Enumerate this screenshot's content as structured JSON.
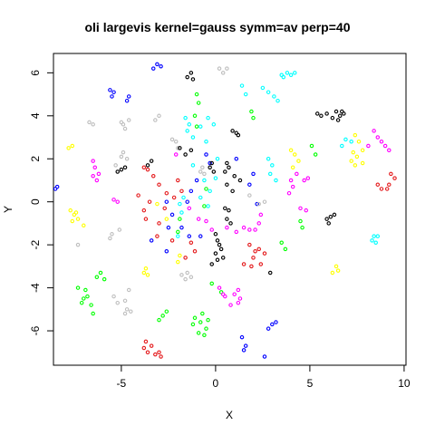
{
  "chart_data": {
    "type": "scatter",
    "title": "oli largevis kernel=gauss symm=av perp=40",
    "xlabel": "X",
    "ylabel": "Y",
    "xlim": [
      -8.6,
      10.1
    ],
    "ylim": [
      -7.6,
      6.9
    ],
    "xticks": [
      -5,
      0,
      5,
      10
    ],
    "yticks": [
      -6,
      -4,
      -2,
      0,
      2,
      4,
      6
    ],
    "marker": "open-circle",
    "series": [
      {
        "color": "#e41a1c",
        "points": [
          [
            -3.8,
            -6.8
          ],
          [
            -3.6,
            -7.0
          ],
          [
            -3.2,
            -7.1
          ],
          [
            -3.4,
            -6.7
          ],
          [
            -2.9,
            -7.2
          ],
          [
            -3.7,
            -6.5
          ],
          [
            -3.0,
            -7.0
          ],
          [
            9.3,
            1.3
          ],
          [
            9.5,
            1.1
          ],
          [
            9.2,
            0.8
          ],
          [
            8.6,
            0.8
          ],
          [
            8.8,
            0.6
          ],
          [
            9.1,
            0.6
          ],
          [
            -2.6,
            0.4
          ],
          [
            -3.0,
            0.8
          ],
          [
            -2.2,
            0.2
          ],
          [
            -1.8,
            0.5
          ],
          [
            -2.0,
            1.0
          ],
          [
            -3.5,
            0.0
          ],
          [
            -3.8,
            -0.4
          ],
          [
            -2.7,
            -0.3
          ],
          [
            -3.0,
            -1.0
          ],
          [
            -3.3,
            1.2
          ],
          [
            -4.1,
            0.3
          ],
          [
            -3.6,
            1.5
          ],
          [
            -3.8,
            1.6
          ],
          [
            1.8,
            -2.0
          ],
          [
            2.3,
            -2.2
          ],
          [
            2.6,
            -2.4
          ],
          [
            2.0,
            -2.6
          ],
          [
            2.4,
            -2.9
          ],
          [
            1.5,
            -2.9
          ],
          [
            1.9,
            -3.0
          ],
          [
            2.1,
            -2.3
          ],
          [
            -1.3,
            -1.9
          ],
          [
            -1.1,
            -2.3
          ],
          [
            -1.6,
            -2.6
          ],
          [
            -3.7,
            -0.8
          ],
          [
            -2.3,
            -1.8
          ],
          [
            -3.1,
            -1.6
          ]
        ]
      },
      {
        "color": "#0000ff",
        "points": [
          [
            -3.1,
            6.4
          ],
          [
            -2.9,
            6.3
          ],
          [
            -3.3,
            6.2
          ],
          [
            -5.6,
            5.2
          ],
          [
            -5.4,
            5.1
          ],
          [
            -5.5,
            4.9
          ],
          [
            -4.6,
            4.9
          ],
          [
            -4.7,
            4.7
          ],
          [
            -8.4,
            0.7
          ],
          [
            -8.5,
            0.6
          ],
          [
            -2.6,
            0.0
          ],
          [
            -2.3,
            -0.6
          ],
          [
            -2.5,
            -1.2
          ],
          [
            -0.8,
            -1.6
          ],
          [
            -1.0,
            1.0
          ],
          [
            -1.3,
            0.5
          ],
          [
            -0.5,
            2.2
          ],
          [
            -0.3,
            1.8
          ],
          [
            1.1,
            2.0
          ],
          [
            1.8,
            0.8
          ],
          [
            2.0,
            1.3
          ],
          [
            2.2,
            -0.1
          ],
          [
            3.0,
            -5.7
          ],
          [
            3.2,
            -5.6
          ],
          [
            2.8,
            -5.9
          ],
          [
            1.4,
            -6.3
          ],
          [
            1.6,
            -6.7
          ],
          [
            1.5,
            -6.9
          ],
          [
            2.6,
            -7.2
          ],
          [
            -1.8,
            -1.2
          ],
          [
            -1.4,
            -1.6
          ],
          [
            -2.6,
            -2.3
          ],
          [
            -3.4,
            -1.8
          ],
          [
            -1.5,
            0.0
          ]
        ]
      },
      {
        "color": "#00ff00",
        "points": [
          [
            -1.0,
            5.0
          ],
          [
            -0.9,
            4.6
          ],
          [
            -1.1,
            4.0
          ],
          [
            -1.0,
            3.5
          ],
          [
            0.3,
            -4.2
          ],
          [
            -0.2,
            -3.8
          ],
          [
            -6.9,
            -4.1
          ],
          [
            -7.0,
            -4.5
          ],
          [
            -6.6,
            -4.8
          ],
          [
            -7.3,
            -4.0
          ],
          [
            -6.8,
            -4.4
          ],
          [
            -6.5,
            -5.2
          ],
          [
            -7.1,
            -4.7
          ],
          [
            -6.1,
            -3.3
          ],
          [
            -5.9,
            -3.6
          ],
          [
            -6.3,
            -3.5
          ],
          [
            -2.8,
            -5.3
          ],
          [
            -2.6,
            -5.1
          ],
          [
            -3.0,
            -5.5
          ],
          [
            -1.2,
            -5.7
          ],
          [
            -0.8,
            -5.6
          ],
          [
            -0.5,
            -5.9
          ],
          [
            -0.9,
            -6.1
          ],
          [
            -1.1,
            -5.4
          ],
          [
            -0.6,
            -6.2
          ],
          [
            -0.7,
            -5.2
          ],
          [
            -0.4,
            -5.5
          ],
          [
            5.1,
            2.6
          ],
          [
            5.3,
            2.2
          ],
          [
            4.5,
            -0.9
          ],
          [
            4.6,
            -1.2
          ],
          [
            3.5,
            -1.9
          ],
          [
            3.7,
            -2.2
          ],
          [
            -1.9,
            -0.8
          ],
          [
            -2.0,
            -1.4
          ],
          [
            -0.6,
            -0.2
          ],
          [
            -0.5,
            0.6
          ],
          [
            2.0,
            3.9
          ],
          [
            1.9,
            4.2
          ]
        ]
      },
      {
        "color": "#00ffff",
        "points": [
          [
            3.5,
            5.9
          ],
          [
            3.8,
            6.0
          ],
          [
            4.0,
            5.9
          ],
          [
            4.2,
            6.0
          ],
          [
            3.6,
            5.8
          ],
          [
            -1.6,
            3.9
          ],
          [
            -1.4,
            3.6
          ],
          [
            -1.5,
            3.3
          ],
          [
            -1.2,
            3.0
          ],
          [
            -0.8,
            3.5
          ],
          [
            -0.4,
            3.9
          ],
          [
            -0.1,
            3.6
          ],
          [
            2.5,
            5.3
          ],
          [
            2.8,
            5.1
          ],
          [
            3.1,
            4.9
          ],
          [
            3.3,
            4.7
          ],
          [
            1.4,
            5.4
          ],
          [
            1.6,
            5.0
          ],
          [
            8.3,
            -1.8
          ],
          [
            8.5,
            -1.9
          ],
          [
            8.6,
            -1.6
          ],
          [
            8.4,
            -1.6
          ],
          [
            2.8,
            2.0
          ],
          [
            3.0,
            1.7
          ],
          [
            2.9,
            1.3
          ],
          [
            3.2,
            1.0
          ],
          [
            -1.9,
            -0.1
          ],
          [
            -1.7,
            0.2
          ],
          [
            -1.8,
            -0.5
          ],
          [
            -0.8,
            0.2
          ],
          [
            -0.6,
            1.0
          ],
          [
            -0.3,
            0.5
          ],
          [
            -0.4,
            -0.2
          ],
          [
            0.1,
            2.0
          ],
          [
            0.0,
            1.1
          ],
          [
            -2.0,
            -1.6
          ],
          [
            6.9,
            2.9
          ],
          [
            7.2,
            2.8
          ],
          [
            6.7,
            2.6
          ],
          [
            -1.2,
            1.7
          ],
          [
            -0.5,
            2.8
          ]
        ]
      },
      {
        "color": "#ff00ff",
        "points": [
          [
            -6.5,
            1.9
          ],
          [
            -6.4,
            1.6
          ],
          [
            -6.2,
            1.3
          ],
          [
            -6.5,
            1.2
          ],
          [
            -6.3,
            1.0
          ],
          [
            -5.4,
            0.1
          ],
          [
            -5.2,
            0.0
          ],
          [
            0.2,
            -4.0
          ],
          [
            0.4,
            -4.3
          ],
          [
            0.5,
            -4.4
          ],
          [
            0.8,
            -4.8
          ],
          [
            1.2,
            -4.1
          ],
          [
            1.3,
            -4.5
          ],
          [
            1.0,
            -4.3
          ],
          [
            1.2,
            -4.7
          ],
          [
            2.1,
            -1.3
          ],
          [
            2.3,
            -1.0
          ],
          [
            1.5,
            -1.2
          ],
          [
            1.8,
            -1.3
          ],
          [
            2.4,
            -0.6
          ],
          [
            1.1,
            -1.4
          ],
          [
            4.0,
            1.0
          ],
          [
            4.3,
            1.3
          ],
          [
            4.7,
            1.0
          ],
          [
            4.9,
            1.1
          ],
          [
            3.9,
            0.4
          ],
          [
            4.1,
            0.7
          ],
          [
            4.5,
            -0.3
          ],
          [
            4.8,
            -0.4
          ],
          [
            8.4,
            3.3
          ],
          [
            8.6,
            3.0
          ],
          [
            8.8,
            2.8
          ],
          [
            9.0,
            2.6
          ],
          [
            9.2,
            2.4
          ],
          [
            8.1,
            2.6
          ],
          [
            -2.1,
            2.2
          ],
          [
            -1.4,
            -0.3
          ],
          [
            -0.9,
            -0.8
          ],
          [
            -0.5,
            -0.9
          ],
          [
            0.6,
            -1.2
          ],
          [
            -0.2,
            -1.3
          ]
        ]
      },
      {
        "color": "#ffff00",
        "points": [
          [
            -7.8,
            2.5
          ],
          [
            -7.6,
            2.6
          ],
          [
            -7.7,
            -0.4
          ],
          [
            -7.4,
            -0.5
          ],
          [
            -7.3,
            -0.8
          ],
          [
            -7.6,
            -0.9
          ],
          [
            -7.5,
            -0.6
          ],
          [
            -7.0,
            -1.1
          ],
          [
            -3.7,
            -3.1
          ],
          [
            -3.6,
            -3.4
          ],
          [
            -3.8,
            -3.3
          ],
          [
            -1.9,
            -2.5
          ],
          [
            -2.0,
            -2.8
          ],
          [
            4.0,
            2.4
          ],
          [
            4.2,
            2.2
          ],
          [
            4.4,
            1.9
          ],
          [
            4.1,
            1.6
          ],
          [
            7.4,
            3.1
          ],
          [
            7.6,
            2.8
          ],
          [
            7.3,
            2.3
          ],
          [
            7.5,
            2.1
          ],
          [
            7.2,
            1.9
          ],
          [
            7.8,
            1.8
          ],
          [
            7.4,
            1.7
          ],
          [
            7.8,
            2.4
          ],
          [
            6.2,
            -3.3
          ],
          [
            6.5,
            -3.2
          ],
          [
            6.4,
            -3.0
          ],
          [
            -3.1,
            -0.1
          ],
          [
            -2.6,
            -0.8
          ]
        ]
      },
      {
        "color": "#bebebe",
        "points": [
          [
            0.2,
            6.2
          ],
          [
            0.6,
            6.2
          ],
          [
            0.4,
            6.0
          ],
          [
            -6.7,
            3.7
          ],
          [
            -6.5,
            3.6
          ],
          [
            -5.0,
            3.7
          ],
          [
            -4.6,
            3.8
          ],
          [
            -4.8,
            3.4
          ],
          [
            -4.9,
            3.6
          ],
          [
            -2.3,
            2.9
          ],
          [
            -2.1,
            2.8
          ],
          [
            -2.0,
            2.5
          ],
          [
            -0.8,
            1.4
          ],
          [
            -0.7,
            1.6
          ],
          [
            -0.6,
            1.3
          ],
          [
            -5.0,
            2.1
          ],
          [
            -4.9,
            2.3
          ],
          [
            -4.7,
            2.0
          ],
          [
            -5.3,
            1.7
          ],
          [
            -5.5,
            -1.5
          ],
          [
            -5.6,
            -1.7
          ],
          [
            -5.1,
            -1.3
          ],
          [
            -5.4,
            -4.4
          ],
          [
            -5.2,
            -4.7
          ],
          [
            -4.8,
            -4.6
          ],
          [
            -4.6,
            -4.1
          ],
          [
            -4.8,
            -5.2
          ],
          [
            -4.5,
            -5.1
          ],
          [
            -4.7,
            -5.0
          ],
          [
            -1.8,
            -3.4
          ],
          [
            -1.6,
            -3.6
          ],
          [
            -1.3,
            -3.5
          ],
          [
            -1.5,
            -3.3
          ],
          [
            -7.3,
            -2.0
          ],
          [
            -3.2,
            3.8
          ],
          [
            -3.0,
            4.0
          ],
          [
            2.3,
            -0.1
          ],
          [
            2.6,
            0.0
          ],
          [
            1.8,
            0.3
          ]
        ]
      },
      {
        "color": "#000000",
        "points": [
          [
            -1.5,
            5.8
          ],
          [
            -1.3,
            6.0
          ],
          [
            -1.2,
            5.7
          ],
          [
            0.9,
            3.3
          ],
          [
            1.1,
            3.2
          ],
          [
            1.2,
            3.1
          ],
          [
            5.4,
            4.1
          ],
          [
            5.6,
            4.0
          ],
          [
            5.9,
            4.1
          ],
          [
            6.2,
            3.9
          ],
          [
            6.5,
            3.8
          ],
          [
            6.6,
            4.0
          ],
          [
            6.7,
            4.2
          ],
          [
            6.8,
            4.1
          ],
          [
            6.4,
            4.2
          ],
          [
            -1.9,
            2.5
          ],
          [
            -1.6,
            2.2
          ],
          [
            -1.3,
            2.4
          ],
          [
            -5.2,
            1.4
          ],
          [
            -5.0,
            1.5
          ],
          [
            -4.8,
            1.6
          ],
          [
            -3.6,
            1.7
          ],
          [
            -3.4,
            1.9
          ],
          [
            0.0,
            -1.5
          ],
          [
            0.1,
            -1.8
          ],
          [
            0.2,
            -2.0
          ],
          [
            0.0,
            -2.4
          ],
          [
            0.3,
            -2.2
          ],
          [
            0.4,
            -2.6
          ],
          [
            -0.2,
            -2.9
          ],
          [
            0.1,
            -2.7
          ],
          [
            0.6,
            -0.8
          ],
          [
            0.8,
            -1.0
          ],
          [
            0.7,
            -0.4
          ],
          [
            0.5,
            -0.3
          ],
          [
            2.9,
            -3.3
          ],
          [
            -0.2,
            1.8
          ],
          [
            -0.3,
            1.6
          ],
          [
            -0.1,
            1.4
          ],
          [
            0.6,
            0.8
          ],
          [
            0.9,
            0.5
          ],
          [
            1.0,
            1.2
          ],
          [
            1.3,
            1.0
          ],
          [
            0.6,
            1.8
          ],
          [
            0.5,
            1.4
          ],
          [
            0.7,
            1.6
          ],
          [
            6.3,
            -0.6
          ],
          [
            6.1,
            -0.7
          ],
          [
            5.9,
            -0.8
          ],
          [
            6.0,
            -1.0
          ]
        ]
      }
    ]
  }
}
